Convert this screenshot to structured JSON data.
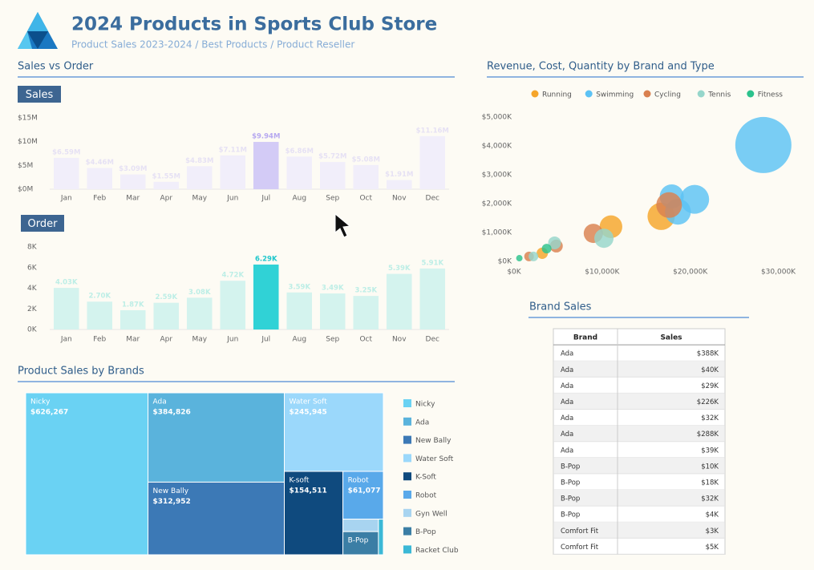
{
  "header": {
    "title": "2024 Products in Sports Club Store",
    "subtitle": "Product Sales 2023-2024 / Best Products / Product Reseller"
  },
  "sections": {
    "sales_vs_order": "Sales vs Order"
  },
  "chart_data": [
    {
      "type": "bar",
      "title": "Sales",
      "color": "#f1eefa",
      "highlight": 6,
      "highlight_color": "#d3cbf6",
      "categories": [
        "Jan",
        "Feb",
        "Mar",
        "Apr",
        "May",
        "Jun",
        "Jul",
        "Aug",
        "Sep",
        "Oct",
        "Nov",
        "Dec"
      ],
      "values": [
        6.59,
        4.46,
        3.09,
        1.55,
        4.83,
        7.11,
        9.94,
        6.86,
        5.72,
        5.08,
        1.91,
        11.16
      ],
      "value_labels": [
        "$6.59M",
        "$4.46M",
        "$3.09M",
        "$1.55M",
        "$4.83M",
        "$7.11M",
        "$9.94M",
        "$6.86M",
        "$5.72M",
        "$5.08M",
        "$1.91M",
        "$11.16M"
      ],
      "ylim": [
        0,
        15
      ],
      "yticks": [
        {
          "value": 0,
          "label": "$0M"
        },
        {
          "value": 5,
          "label": "$5M"
        },
        {
          "value": 10,
          "label": "$10M"
        },
        {
          "value": 15,
          "label": "$15M"
        }
      ],
      "grid": false
    },
    {
      "type": "bar",
      "title": "Order",
      "color": "#d4f3ee",
      "highlight": 6,
      "highlight_color": "#30d2d6",
      "categories": [
        "Jan",
        "Feb",
        "Mar",
        "Apr",
        "May",
        "Jun",
        "Jul",
        "Aug",
        "Sep",
        "Oct",
        "Nov",
        "Dec"
      ],
      "values": [
        4.03,
        2.7,
        1.87,
        2.59,
        3.08,
        4.72,
        6.29,
        3.59,
        3.49,
        3.25,
        5.39,
        5.91
      ],
      "value_labels": [
        "4.03K",
        "2.70K",
        "1.87K",
        "2.59K",
        "3.08K",
        "4.72K",
        "6.29K",
        "3.59K",
        "3.49K",
        "3.25K",
        "5.39K",
        "5.91K"
      ],
      "ylim": [
        0,
        8
      ],
      "yticks": [
        {
          "value": 0,
          "label": "0K"
        },
        {
          "value": 2,
          "label": "2K"
        },
        {
          "value": 4,
          "label": "4K"
        },
        {
          "value": 6,
          "label": "6K"
        },
        {
          "value": 8,
          "label": "8K"
        }
      ],
      "grid": false
    },
    {
      "type": "scatter",
      "title": "Revenue, Cost, Quantity by Brand and Type",
      "legend": "top-right",
      "xlim": [
        0,
        31500
      ],
      "ylim": [
        0,
        5000
      ],
      "xticks": [
        {
          "value": 0,
          "label": "$0K"
        },
        {
          "value": 10000,
          "label": "$10,000K"
        },
        {
          "value": 20000,
          "label": "$20,000K"
        },
        {
          "value": 30000,
          "label": "$30,000K"
        }
      ],
      "yticks": [
        {
          "value": 0,
          "label": "$0K"
        },
        {
          "value": 1000,
          "label": "$1,000K"
        },
        {
          "value": 2000,
          "label": "$2,000K"
        },
        {
          "value": 3000,
          "label": "$3,000K"
        },
        {
          "value": 4000,
          "label": "$4,000K"
        },
        {
          "value": 5000,
          "label": "$5,000K"
        }
      ],
      "series": [
        {
          "name": "Running",
          "color": "#f5a52a",
          "x": [
            16700,
            11000,
            3200
          ],
          "values": [
            1560,
            1200,
            280
          ],
          "sizes": [
            290,
            200,
            50
          ]
        },
        {
          "name": "Swimming",
          "color": "#5cc2f4",
          "x": [
            28300,
            20500,
            18600,
            17900
          ],
          "values": [
            4030,
            2150,
            1720,
            2250
          ],
          "sizes": [
            1225,
            325,
            260,
            225
          ]
        },
        {
          "name": "Cycling",
          "color": "#d9804f",
          "x": [
            17600,
            9000,
            4800,
            1700
          ],
          "values": [
            1950,
            970,
            530,
            170
          ],
          "sizes": [
            256,
            144,
            64,
            36
          ]
        },
        {
          "name": "Tennis",
          "color": "#96d6cb",
          "x": [
            10200,
            4600,
            2200
          ],
          "values": [
            800,
            640,
            170
          ],
          "sizes": [
            144,
            64,
            36
          ]
        },
        {
          "name": "Fitness",
          "color": "#2cc28c",
          "x": [
            3700,
            600
          ],
          "values": [
            440,
            110
          ],
          "sizes": [
            36,
            16
          ]
        }
      ]
    },
    {
      "type": "treemap",
      "title": "Product Sales by Brands",
      "categories": [
        "Nicky",
        "Ada",
        "New Bally",
        "Water Soft",
        "K-soft",
        "Robot",
        "Gyn Well",
        "B-Pop",
        "Racket Club"
      ],
      "values": [
        626267,
        384826,
        312952,
        245945,
        154511,
        61077,
        14000,
        26000,
        5500
      ],
      "value_labels": [
        "$626,267",
        "$384,826",
        "$312,952",
        "$245,945",
        "$154,511",
        "$61,077",
        null,
        null,
        null
      ],
      "colors": [
        "#6ad2f3",
        "#5ab3dc",
        "#3c79b6",
        "#9bd8fb",
        "#0f4a7e",
        "#59a9ea",
        "#a8d4f0",
        "#3b7ea5",
        "#3bb8d6"
      ],
      "legend_names": [
        "Nicky",
        "Ada",
        "New Bally",
        "Water Soft",
        "K-Soft",
        "Robot",
        "Gyn Well",
        "B-Pop",
        "Racket Club"
      ]
    }
  ],
  "table": {
    "title": "Brand Sales",
    "columns": [
      "Brand",
      "Sales"
    ],
    "rows": [
      [
        "Ada",
        "$388K"
      ],
      [
        "Ada",
        "$40K"
      ],
      [
        "Ada",
        "$29K"
      ],
      [
        "Ada",
        "$226K"
      ],
      [
        "Ada",
        "$32K"
      ],
      [
        "Ada",
        "$288K"
      ],
      [
        "Ada",
        "$39K"
      ],
      [
        "B-Pop",
        "$10K"
      ],
      [
        "B-Pop",
        "$18K"
      ],
      [
        "B-Pop",
        "$32K"
      ],
      [
        "B-Pop",
        "$4K"
      ],
      [
        "Comfort Fit",
        "$3K"
      ],
      [
        "Comfort Fit",
        "$5K"
      ]
    ]
  }
}
